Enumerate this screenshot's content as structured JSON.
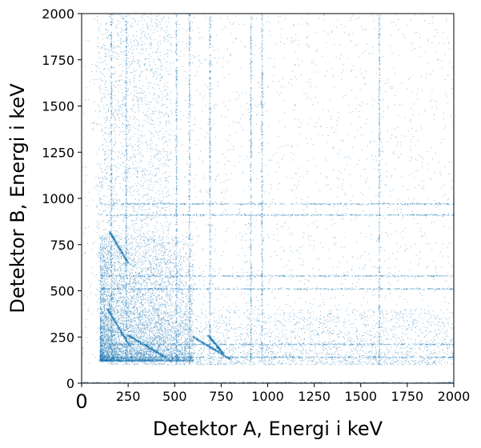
{
  "chart_data": {
    "type": "scatter",
    "title": "",
    "xlabel": "Detektor A, Energi i keV",
    "ylabel": "Detektor B, Energi i keV",
    "xlim": [
      0,
      2000
    ],
    "ylim": [
      0,
      2000
    ],
    "grid": false,
    "marker_color": "#1f77b4",
    "x_ticks": [
      {
        "value": 0,
        "label": "0"
      },
      {
        "value": 250,
        "label": "250"
      },
      {
        "value": 500,
        "label": "500"
      },
      {
        "value": 750,
        "label": "750"
      },
      {
        "value": 1000,
        "label": "1000"
      },
      {
        "value": 1250,
        "label": "1250"
      },
      {
        "value": 1500,
        "label": "1500"
      },
      {
        "value": 1750,
        "label": "1750"
      },
      {
        "value": 2000,
        "label": "2000"
      }
    ],
    "y_ticks": [
      {
        "value": 0,
        "label": "0"
      },
      {
        "value": 250,
        "label": "250"
      },
      {
        "value": 500,
        "label": "500"
      },
      {
        "value": 750,
        "label": "750"
      },
      {
        "value": 1000,
        "label": "1000"
      },
      {
        "value": 1250,
        "label": "1250"
      },
      {
        "value": 1500,
        "label": "1500"
      },
      {
        "value": 1750,
        "label": "1750"
      },
      {
        "value": 2000,
        "label": "2000"
      }
    ],
    "features": {
      "vertical_lines_x": [
        160,
        240,
        510,
        580,
        690,
        910,
        970,
        1600
      ],
      "horizontal_lines_y": [
        140,
        210,
        510,
        580,
        910,
        970
      ],
      "diagonal_bands": [
        {
          "x0": 150,
          "y0": 820,
          "x1": 250,
          "y1": 650
        },
        {
          "x0": 140,
          "y0": 400,
          "x1": 260,
          "y1": 200
        },
        {
          "x0": 250,
          "y0": 260,
          "x1": 450,
          "y1": 140
        },
        {
          "x0": 600,
          "y0": 250,
          "x1": 800,
          "y1": 130
        },
        {
          "x0": 680,
          "y0": 260,
          "x1": 760,
          "y1": 160
        }
      ],
      "dense_region": {
        "x": [
          100,
          600
        ],
        "y": [
          120,
          800
        ]
      }
    }
  }
}
